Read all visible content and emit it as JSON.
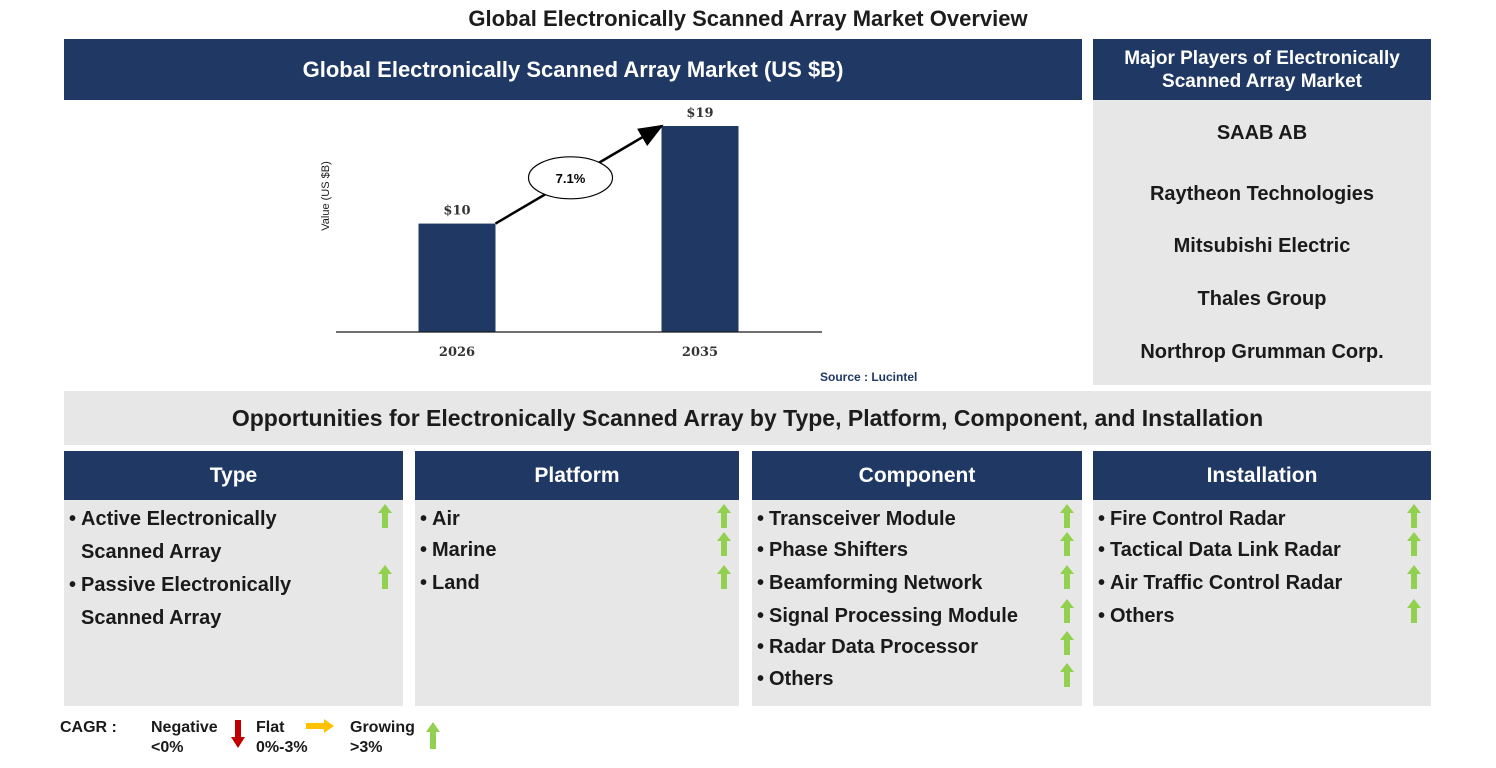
{
  "page_title": "Global Electronically Scanned Array Market Overview",
  "chart_header": "Global Electronically Scanned Array Market (US $B)",
  "chart_data": {
    "type": "bar",
    "categories": [
      "2026",
      "2035"
    ],
    "values": [
      10,
      19
    ],
    "value_labels": [
      "$10",
      "$19"
    ],
    "ylabel": "Value (US $B)",
    "xlabel": "",
    "title": "",
    "cagr_label": "7.1%",
    "bar_color": "#1f3864"
  },
  "source": "Source : Lucintel",
  "players": {
    "header": "Major Players of Electronically Scanned Array Market",
    "items": [
      "SAAB AB",
      "Raytheon Technologies",
      "Mitsubishi Electric",
      "Thales Group",
      "Northrop Grumman Corp."
    ]
  },
  "opportunities_header": "Opportunities for Electronically Scanned Array by Type, Platform, Component, and Installation",
  "categories": {
    "type": {
      "title": "Type",
      "items": [
        {
          "line1": "Active Electronically",
          "line2": "Scanned Array",
          "trend": "growing"
        },
        {
          "line1": "Passive Electronically",
          "line2": "Scanned Array",
          "trend": "growing"
        }
      ]
    },
    "platform": {
      "title": "Platform",
      "items": [
        {
          "line1": "Air",
          "trend": "growing"
        },
        {
          "line1": "Marine",
          "trend": "growing"
        },
        {
          "line1": "Land",
          "trend": "growing"
        }
      ]
    },
    "component": {
      "title": "Component",
      "items": [
        {
          "line1": "Transceiver Module",
          "trend": "growing"
        },
        {
          "line1": "Phase Shifters",
          "trend": "growing"
        },
        {
          "line1": "Beamforming Network",
          "trend": "growing"
        },
        {
          "line1": "Signal Processing Module",
          "trend": "growing"
        },
        {
          "line1": "Radar Data Processor",
          "trend": "growing"
        },
        {
          "line1": "Others",
          "trend": "growing"
        }
      ]
    },
    "installation": {
      "title": "Installation",
      "items": [
        {
          "line1": "Fire Control Radar",
          "trend": "growing"
        },
        {
          "line1": "Tactical Data Link Radar",
          "trend": "growing"
        },
        {
          "line1": "Air Traffic Control Radar",
          "trend": "growing"
        },
        {
          "line1": "Others",
          "trend": "growing"
        }
      ]
    }
  },
  "legend": {
    "label": "CAGR :",
    "negative": {
      "name": "Negative",
      "range": "<0%"
    },
    "flat": {
      "name": "Flat",
      "range": "0%-3%"
    },
    "growing": {
      "name": "Growing",
      "range": ">3%"
    }
  },
  "colors": {
    "navy": "#1f3864",
    "panel_grey": "#e7e7e7",
    "growing_arrow": "#92d050",
    "negative_arrow": "#c00000",
    "flat_arrow": "#ffc000"
  }
}
